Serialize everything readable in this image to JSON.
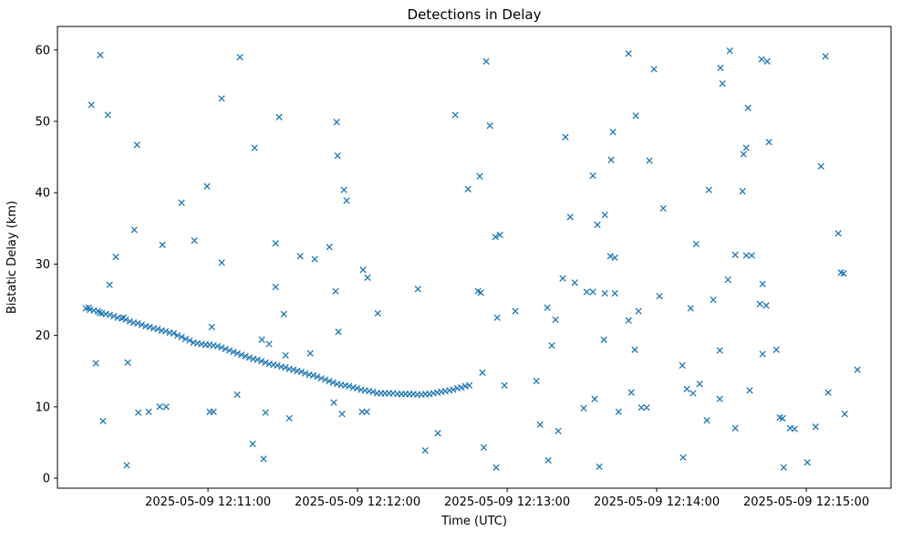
{
  "chart_data": {
    "type": "scatter",
    "title": "Detections in Delay",
    "xlabel": "Time (UTC)",
    "ylabel": "Bistatic Delay (km)",
    "marker": "x",
    "marker_color": "#1f77b4",
    "grid": false,
    "legend": "none",
    "x_axis": {
      "unit": "seconds after 2025-05-09 12:10:00 UTC",
      "lim": [
        -0.4,
        334.0
      ],
      "ticks": [
        {
          "value": 60,
          "label": "2025-05-09 12:11:00"
        },
        {
          "value": 120,
          "label": "2025-05-09 12:12:00"
        },
        {
          "value": 180,
          "label": "2025-05-09 12:13:00"
        },
        {
          "value": 240,
          "label": "2025-05-09 12:14:00"
        },
        {
          "value": 300,
          "label": "2025-05-09 12:15:00"
        }
      ]
    },
    "y_axis": {
      "lim": [
        -1.4,
        63.3
      ],
      "ticks": [
        {
          "value": 0,
          "label": "0"
        },
        {
          "value": 10,
          "label": "10"
        },
        {
          "value": 20,
          "label": "20"
        },
        {
          "value": 30,
          "label": "30"
        },
        {
          "value": 40,
          "label": "40"
        },
        {
          "value": 50,
          "label": "50"
        },
        {
          "value": 60,
          "label": "60"
        }
      ]
    },
    "series": [
      {
        "name": "main-track",
        "points": [
          [
            11.0,
            23.8
          ],
          [
            12.1,
            23.9
          ],
          [
            12.6,
            23.6
          ],
          [
            14.2,
            23.5
          ],
          [
            15.8,
            23.4
          ],
          [
            16.5,
            23.2
          ],
          [
            17.4,
            23.1
          ],
          [
            19.0,
            23.0
          ],
          [
            20.6,
            22.9
          ],
          [
            22.2,
            22.7
          ],
          [
            23.8,
            22.5
          ],
          [
            25.4,
            22.4
          ],
          [
            26.2,
            22.5
          ],
          [
            27.0,
            22.2
          ],
          [
            28.6,
            22.0
          ],
          [
            30.2,
            21.8
          ],
          [
            31.8,
            21.7
          ],
          [
            33.4,
            21.5
          ],
          [
            35.0,
            21.3
          ],
          [
            36.6,
            21.2
          ],
          [
            38.2,
            21.0
          ],
          [
            39.8,
            20.9
          ],
          [
            41.4,
            20.7
          ],
          [
            43.0,
            20.6
          ],
          [
            44.6,
            20.4
          ],
          [
            46.2,
            20.3
          ],
          [
            47.8,
            20.0
          ],
          [
            49.4,
            19.8
          ],
          [
            51.0,
            19.5
          ],
          [
            52.6,
            19.3
          ],
          [
            54.2,
            19.0
          ],
          [
            55.8,
            18.9
          ],
          [
            57.4,
            18.8
          ],
          [
            59.0,
            18.7
          ],
          [
            60.6,
            18.7
          ],
          [
            62.2,
            18.6
          ],
          [
            63.8,
            18.5
          ],
          [
            65.4,
            18.3
          ],
          [
            67.0,
            18.1
          ],
          [
            68.6,
            17.9
          ],
          [
            70.2,
            17.7
          ],
          [
            71.8,
            17.5
          ],
          [
            73.4,
            17.3
          ],
          [
            75.0,
            17.1
          ],
          [
            76.6,
            16.9
          ],
          [
            78.2,
            16.7
          ],
          [
            79.8,
            16.6
          ],
          [
            81.4,
            16.4
          ],
          [
            83.0,
            16.2
          ],
          [
            84.6,
            16.0
          ],
          [
            86.2,
            15.9
          ],
          [
            87.8,
            15.8
          ],
          [
            89.4,
            15.6
          ],
          [
            91.0,
            15.5
          ],
          [
            92.6,
            15.3
          ],
          [
            94.2,
            15.2
          ],
          [
            95.8,
            15.0
          ],
          [
            97.4,
            14.9
          ],
          [
            99.0,
            14.7
          ],
          [
            100.6,
            14.5
          ],
          [
            102.2,
            14.4
          ],
          [
            103.8,
            14.2
          ],
          [
            105.4,
            14.0
          ],
          [
            107.0,
            13.8
          ],
          [
            108.6,
            13.6
          ],
          [
            110.2,
            13.4
          ],
          [
            111.8,
            13.2
          ],
          [
            113.4,
            13.1
          ],
          [
            115.0,
            13.0
          ],
          [
            116.6,
            12.9
          ],
          [
            118.2,
            12.7
          ],
          [
            119.8,
            12.6
          ],
          [
            121.4,
            12.4
          ],
          [
            123.0,
            12.3
          ],
          [
            124.6,
            12.2
          ],
          [
            126.2,
            12.1
          ],
          [
            127.8,
            11.9
          ],
          [
            129.4,
            11.9
          ],
          [
            131.0,
            11.9
          ],
          [
            132.6,
            11.9
          ],
          [
            134.2,
            11.9
          ],
          [
            136.0,
            11.8
          ],
          [
            137.6,
            11.8
          ],
          [
            139.2,
            11.8
          ],
          [
            140.8,
            11.8
          ],
          [
            142.4,
            11.8
          ],
          [
            144.0,
            11.7
          ],
          [
            145.6,
            11.7
          ],
          [
            147.2,
            11.8
          ],
          [
            148.8,
            11.8
          ],
          [
            150.4,
            11.9
          ],
          [
            152.0,
            12.0
          ],
          [
            153.6,
            12.1
          ],
          [
            155.2,
            12.2
          ],
          [
            156.8,
            12.3
          ],
          [
            158.4,
            12.4
          ],
          [
            160.0,
            12.6
          ],
          [
            161.6,
            12.7
          ],
          [
            163.2,
            12.9
          ],
          [
            164.8,
            13.0
          ]
        ]
      },
      {
        "name": "background-detections",
        "points": [
          [
            13.2,
            52.3
          ],
          [
            16.8,
            59.3
          ],
          [
            19.8,
            50.9
          ],
          [
            15.0,
            16.1
          ],
          [
            17.9,
            8.0
          ],
          [
            20.5,
            27.1
          ],
          [
            23.0,
            31.0
          ],
          [
            27.4,
            1.8
          ],
          [
            27.8,
            16.2
          ],
          [
            30.4,
            34.8
          ],
          [
            31.5,
            46.7
          ],
          [
            32.0,
            9.2
          ],
          [
            36.2,
            9.3
          ],
          [
            40.6,
            10.0
          ],
          [
            43.2,
            10.0
          ],
          [
            41.7,
            32.7
          ],
          [
            49.4,
            38.6
          ],
          [
            54.5,
            33.3
          ],
          [
            59.6,
            40.9
          ],
          [
            60.7,
            9.3
          ],
          [
            62.2,
            9.3
          ],
          [
            61.5,
            21.2
          ],
          [
            65.5,
            53.2
          ],
          [
            65.5,
            30.2
          ],
          [
            71.7,
            11.7
          ],
          [
            72.8,
            59.0
          ],
          [
            78.7,
            46.3
          ],
          [
            77.9,
            4.8
          ],
          [
            81.6,
            19.4
          ],
          [
            83.1,
            9.2
          ],
          [
            82.3,
            2.7
          ],
          [
            84.5,
            18.8
          ],
          [
            87.1,
            32.9
          ],
          [
            87.1,
            26.8
          ],
          [
            88.5,
            50.6
          ],
          [
            90.4,
            23.0
          ],
          [
            91.1,
            17.2
          ],
          [
            92.6,
            8.4
          ],
          [
            97.0,
            31.1
          ],
          [
            101.0,
            17.5
          ],
          [
            102.8,
            30.7
          ],
          [
            108.7,
            32.4
          ],
          [
            110.5,
            10.6
          ],
          [
            111.6,
            49.9
          ],
          [
            112.0,
            45.2
          ],
          [
            112.3,
            20.5
          ],
          [
            113.8,
            9.0
          ],
          [
            114.5,
            40.4
          ],
          [
            115.6,
            38.9
          ],
          [
            111.2,
            26.2
          ],
          [
            121.8,
            9.3
          ],
          [
            123.7,
            9.3
          ],
          [
            122.2,
            29.2
          ],
          [
            124.0,
            28.1
          ],
          [
            128.1,
            23.1
          ],
          [
            144.2,
            26.5
          ],
          [
            147.1,
            3.9
          ],
          [
            152.2,
            6.3
          ],
          [
            159.2,
            50.9
          ],
          [
            164.3,
            40.5
          ],
          [
            169.0,
            42.3
          ],
          [
            168.3,
            26.2
          ],
          [
            169.4,
            26.0
          ],
          [
            170.1,
            14.8
          ],
          [
            171.6,
            58.4
          ],
          [
            173.1,
            49.4
          ],
          [
            170.6,
            4.3
          ],
          [
            175.3,
            33.8
          ],
          [
            177.1,
            34.1
          ],
          [
            176.0,
            22.5
          ],
          [
            175.6,
            1.5
          ],
          [
            178.9,
            13.0
          ],
          [
            183.3,
            23.4
          ],
          [
            191.7,
            13.6
          ],
          [
            193.2,
            7.5
          ],
          [
            196.5,
            2.5
          ],
          [
            197.9,
            18.6
          ],
          [
            196.1,
            23.9
          ],
          [
            199.4,
            22.2
          ],
          [
            200.5,
            6.6
          ],
          [
            202.3,
            28.0
          ],
          [
            203.4,
            47.8
          ],
          [
            205.3,
            36.6
          ],
          [
            207.1,
            27.4
          ],
          [
            210.7,
            9.8
          ],
          [
            211.9,
            26.1
          ],
          [
            214.4,
            26.1
          ],
          [
            214.4,
            42.4
          ],
          [
            216.2,
            35.5
          ],
          [
            215.1,
            11.1
          ],
          [
            217.0,
            1.6
          ],
          [
            218.8,
            19.4
          ],
          [
            219.2,
            36.9
          ],
          [
            219.2,
            25.9
          ],
          [
            221.4,
            31.1
          ],
          [
            223.2,
            30.9
          ],
          [
            223.2,
            25.9
          ],
          [
            221.7,
            44.6
          ],
          [
            222.4,
            48.5
          ],
          [
            224.7,
            9.3
          ],
          [
            228.7,
            59.5
          ],
          [
            229.8,
            12.0
          ],
          [
            228.7,
            22.1
          ],
          [
            231.2,
            18.0
          ],
          [
            231.6,
            50.8
          ],
          [
            232.7,
            23.4
          ],
          [
            233.8,
            9.9
          ],
          [
            236.0,
            9.9
          ],
          [
            237.1,
            44.5
          ],
          [
            238.9,
            57.3
          ],
          [
            241.1,
            25.5
          ],
          [
            242.6,
            37.8
          ],
          [
            250.3,
            15.8
          ],
          [
            250.6,
            2.9
          ],
          [
            253.6,
            23.8
          ],
          [
            252.1,
            12.5
          ],
          [
            254.6,
            11.9
          ],
          [
            255.8,
            32.8
          ],
          [
            257.2,
            13.2
          ],
          [
            260.1,
            8.1
          ],
          [
            260.9,
            40.4
          ],
          [
            262.7,
            25.0
          ],
          [
            265.3,
            17.9
          ],
          [
            265.3,
            11.1
          ],
          [
            265.6,
            57.5
          ],
          [
            266.4,
            55.3
          ],
          [
            268.6,
            27.8
          ],
          [
            269.3,
            59.9
          ],
          [
            271.5,
            7.0
          ],
          [
            271.5,
            31.3
          ],
          [
            274.4,
            40.2
          ],
          [
            274.8,
            45.4
          ],
          [
            275.9,
            46.3
          ],
          [
            275.9,
            31.2
          ],
          [
            276.6,
            51.9
          ],
          [
            278.1,
            31.2
          ],
          [
            277.3,
            12.3
          ],
          [
            281.4,
            24.4
          ],
          [
            283.9,
            24.2
          ],
          [
            282.5,
            27.2
          ],
          [
            282.1,
            58.7
          ],
          [
            284.3,
            58.4
          ],
          [
            282.5,
            17.4
          ],
          [
            285.0,
            47.1
          ],
          [
            288.0,
            18.0
          ],
          [
            289.4,
            8.5
          ],
          [
            290.5,
            8.4
          ],
          [
            290.9,
            1.5
          ],
          [
            293.5,
            7.0
          ],
          [
            295.3,
            6.9
          ],
          [
            300.4,
            2.2
          ],
          [
            303.7,
            7.2
          ],
          [
            305.9,
            43.7
          ],
          [
            307.7,
            59.1
          ],
          [
            308.8,
            12.0
          ],
          [
            312.8,
            34.3
          ],
          [
            313.9,
            28.8
          ],
          [
            315.0,
            28.7
          ],
          [
            315.4,
            9.0
          ],
          [
            320.5,
            15.2
          ]
        ]
      }
    ]
  }
}
